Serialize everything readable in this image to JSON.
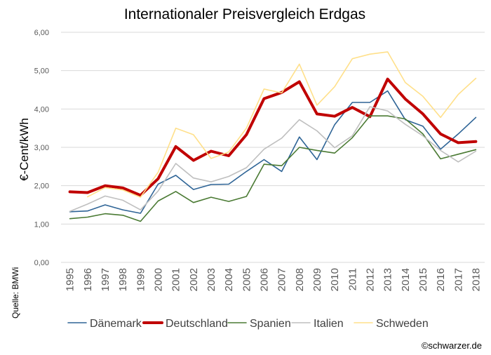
{
  "chart_data": {
    "type": "line",
    "title": "Internationaler Preisvergleich Erdgas",
    "ylabel": "€-Cent/kWh",
    "xlabel": "",
    "ylim": [
      0,
      6
    ],
    "yticks": [
      "0,00",
      "1,00",
      "2,00",
      "3,00",
      "4,00",
      "5,00",
      "6,00"
    ],
    "x": [
      "1995",
      "1996",
      "1997",
      "1998",
      "1999",
      "2000",
      "2001",
      "2002",
      "2003",
      "2004",
      "2005",
      "2006",
      "2007",
      "2008",
      "2009",
      "2010",
      "2011",
      "2012",
      "2013",
      "2014",
      "2015",
      "2016",
      "2017",
      "2018"
    ],
    "grid": true,
    "legend_position": "bottom",
    "series": [
      {
        "name": "Dänemark",
        "color": "#2e6496",
        "width": 1.6,
        "values": [
          1.32,
          1.34,
          1.5,
          1.37,
          1.28,
          2.04,
          2.27,
          1.9,
          2.03,
          2.04,
          2.37,
          2.68,
          2.37,
          3.27,
          2.68,
          3.59,
          4.17,
          4.17,
          4.47,
          3.72,
          3.55,
          2.95,
          3.35,
          3.78
        ]
      },
      {
        "name": "Deutschland",
        "color": "#c00000",
        "width": 4,
        "values": [
          1.84,
          1.82,
          2.0,
          1.94,
          1.75,
          2.18,
          3.02,
          2.66,
          2.9,
          2.78,
          3.33,
          4.27,
          4.43,
          4.71,
          3.87,
          3.81,
          4.04,
          3.8,
          4.78,
          4.26,
          3.87,
          3.35,
          3.12,
          3.15
        ]
      },
      {
        "name": "Spanien",
        "color": "#4a7a33",
        "width": 1.6,
        "values": [
          1.14,
          1.18,
          1.27,
          1.23,
          1.07,
          1.6,
          1.85,
          1.56,
          1.7,
          1.59,
          1.72,
          2.56,
          2.52,
          3.0,
          2.92,
          2.85,
          3.25,
          3.82,
          3.82,
          3.74,
          3.35,
          2.7,
          2.82,
          2.94
        ]
      },
      {
        "name": "Italien",
        "color": "#bfbfbf",
        "width": 1.6,
        "values": [
          1.33,
          1.52,
          1.73,
          1.62,
          1.37,
          1.86,
          2.58,
          2.2,
          2.1,
          2.24,
          2.47,
          2.95,
          3.24,
          3.72,
          3.43,
          2.99,
          3.3,
          4.06,
          3.95,
          3.6,
          3.3,
          2.92,
          2.62,
          2.9
        ]
      },
      {
        "name": "Schweden",
        "color": "#ffe08a",
        "width": 1.6,
        "values": [
          null,
          1.71,
          1.95,
          1.89,
          1.7,
          2.35,
          3.5,
          3.33,
          2.71,
          2.88,
          3.5,
          4.52,
          4.42,
          5.17,
          4.1,
          4.58,
          5.31,
          5.43,
          5.49,
          4.69,
          4.33,
          3.78,
          4.38,
          4.8
        ]
      }
    ]
  },
  "source": "Quelle: BMWi",
  "credit": "©schwarzer.de"
}
